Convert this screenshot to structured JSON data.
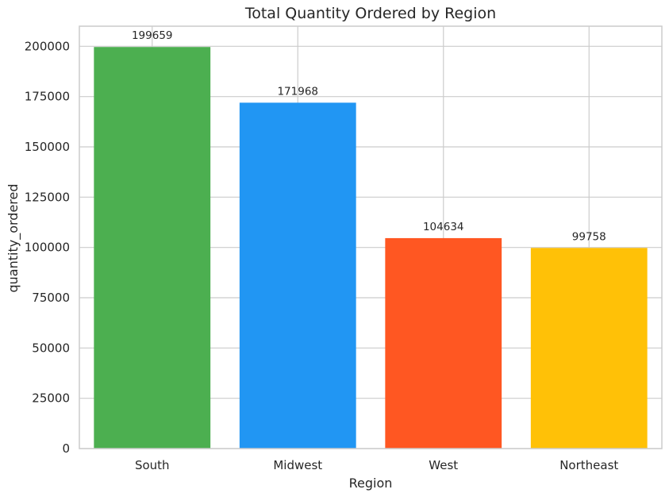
{
  "chart_data": {
    "type": "bar",
    "title": "Total Quantity Ordered by Region",
    "xlabel": "Region",
    "ylabel": "quantity_ordered",
    "categories": [
      "South",
      "Midwest",
      "West",
      "Northeast"
    ],
    "values": [
      199659,
      171968,
      104634,
      99758
    ],
    "colors": [
      "#4caf50",
      "#2196f3",
      "#ff5722",
      "#ffc107"
    ],
    "ylim": [
      0,
      210000
    ],
    "yticks": [
      0,
      25000,
      50000,
      75000,
      100000,
      125000,
      150000,
      175000,
      200000
    ],
    "grid": true,
    "legend": "none"
  }
}
